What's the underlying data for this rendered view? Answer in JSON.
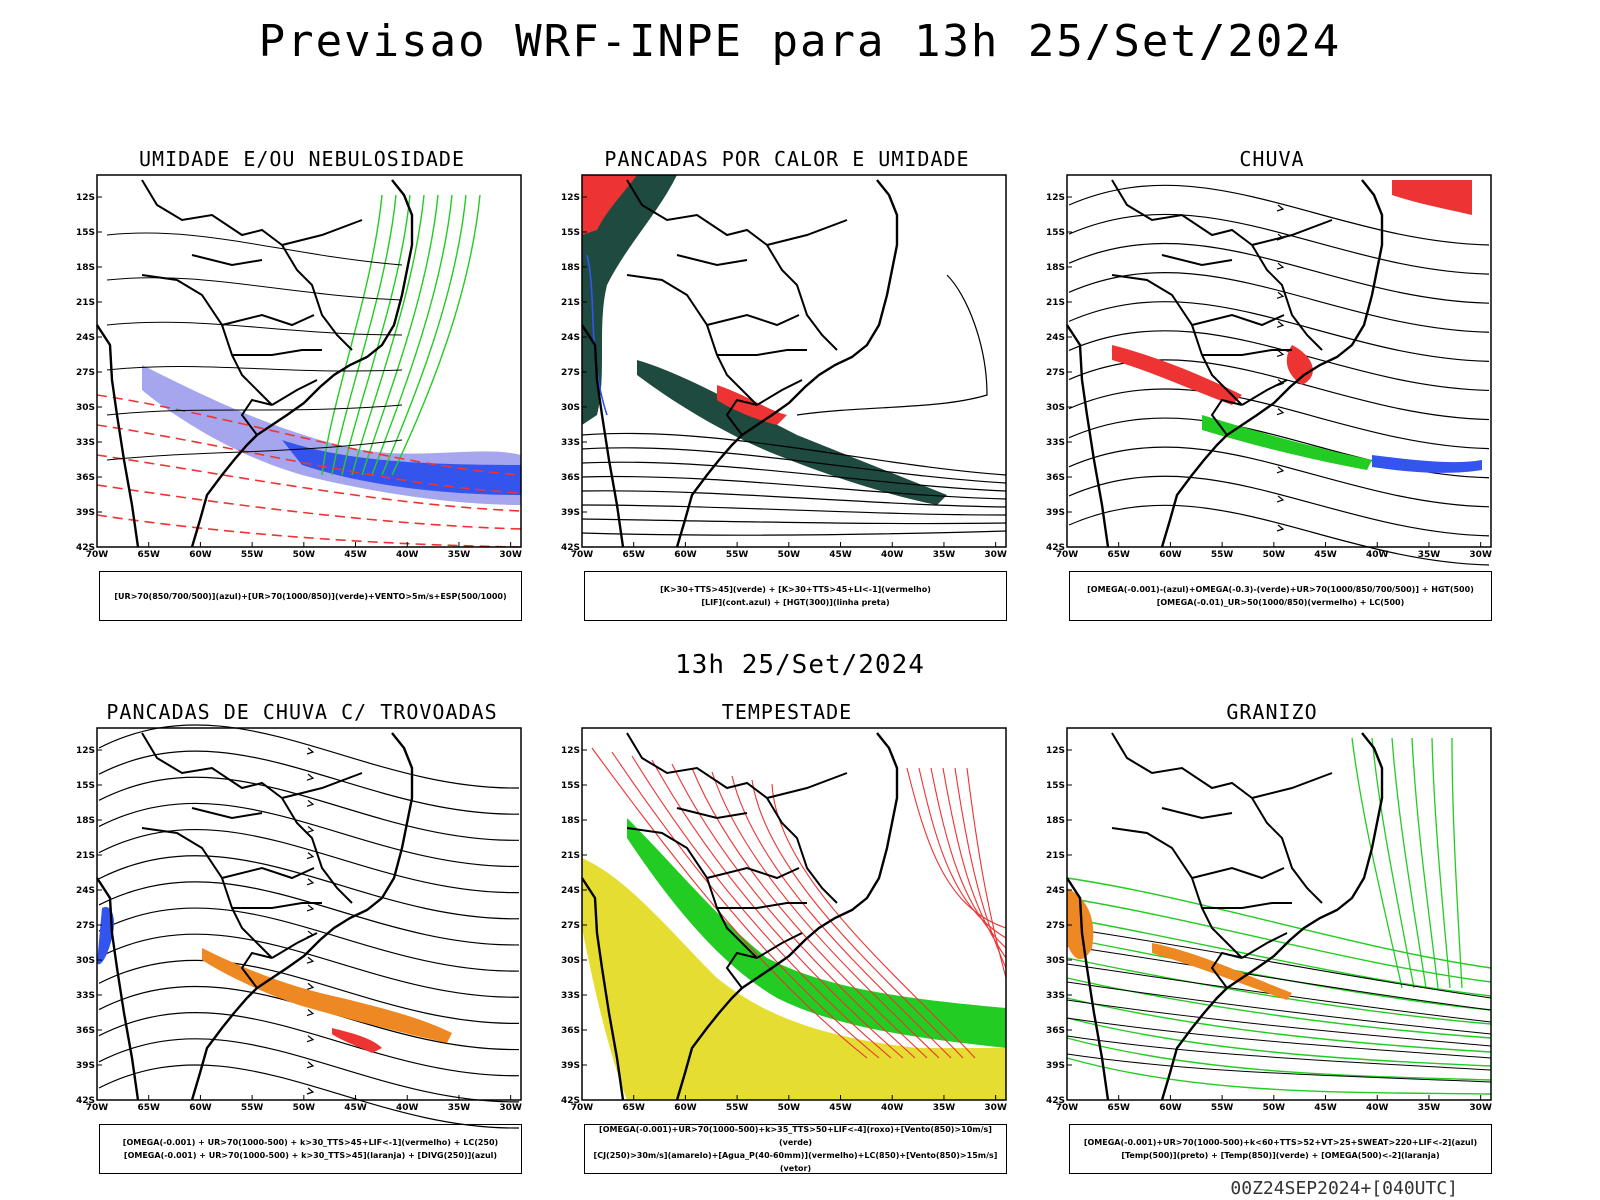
{
  "header": {
    "title": "Previsao WRF-INPE  para 13h 25/Set/2024"
  },
  "middle": {
    "title": "13h 25/Set/2024"
  },
  "footer": {
    "run": "00Z24SEP2024+[040UTC]"
  },
  "axes": {
    "lat": [
      "12S",
      "15S",
      "18S",
      "21S",
      "24S",
      "27S",
      "30S",
      "33S",
      "36S",
      "39S",
      "42S"
    ],
    "lon": [
      "70W",
      "65W",
      "60W",
      "55W",
      "50W",
      "45W",
      "40W",
      "35W",
      "30W"
    ]
  },
  "colors": {
    "blue": "#3355ee",
    "green": "#22cc22",
    "red": "#ee3333",
    "orange": "#ee8822",
    "yellow": "#e6dd33",
    "dark": "#1f4a40",
    "lavender": "#a6a6ee"
  },
  "panels": [
    {
      "id": "umidade",
      "title": "UMIDADE E/OU NEBULOSIDADE",
      "legend": [
        "[UR>70(850/700/500)](azul)+[UR>70(1000/850)](verde)+VENTO>5m/s+ESP(500/1000)"
      ]
    },
    {
      "id": "pancadas-calor",
      "title": "PANCADAS POR CALOR E UMIDADE",
      "legend": [
        "[K>30+TTS>45](verde) + [K>30+TTS>45+LI<-1](vermelho)",
        "[LIF](cont.azul) + [HGT(300)](linha preta)"
      ]
    },
    {
      "id": "chuva",
      "title": "CHUVA",
      "legend": [
        "[OMEGA(-0.001)-(azul)+OMEGA(-0.3)-(verde)+UR>70(1000/850/700/500)] + HGT(500)",
        "[OMEGA(-0.01)_UR>50(1000/850)(vermelho) + LC(500)"
      ]
    },
    {
      "id": "trovoadas",
      "title": "PANCADAS DE CHUVA C/ TROVOADAS",
      "legend": [
        "[OMEGA(-0.001) + UR>70(1000-500) + k>30_TTS>45+LIF<-1](vermelho) + LC(250)",
        "[OMEGA(-0.001) + UR>70(1000-500) + k>30_TTS>45](laranja) + [DIVG(250)](azul)"
      ]
    },
    {
      "id": "tempestade",
      "title": "TEMPESTADE",
      "legend": [
        "[OMEGA(-0.001)+UR>70(1000-500)+k>35_TTS>50+LIF<-4](roxo)+[Vento(850)>10m/s](verde)",
        "[CJ(250)>30m/s](amarelo)+[Agua_P(40-60mm)](vermelho)+LC(850)+[Vento(850)>15m/s](vetor)"
      ]
    },
    {
      "id": "granizo",
      "title": "GRANIZO",
      "legend": [
        "[OMEGA(-0.001)+UR>70(1000-500)+k<60+TTS>52+VT>25+SWEAT>220+LIF<-2](azul)",
        "[Temp(500)](preto) + [Temp(850)](verde) + [OMEGA(500)<-2](laranja)"
      ]
    }
  ]
}
